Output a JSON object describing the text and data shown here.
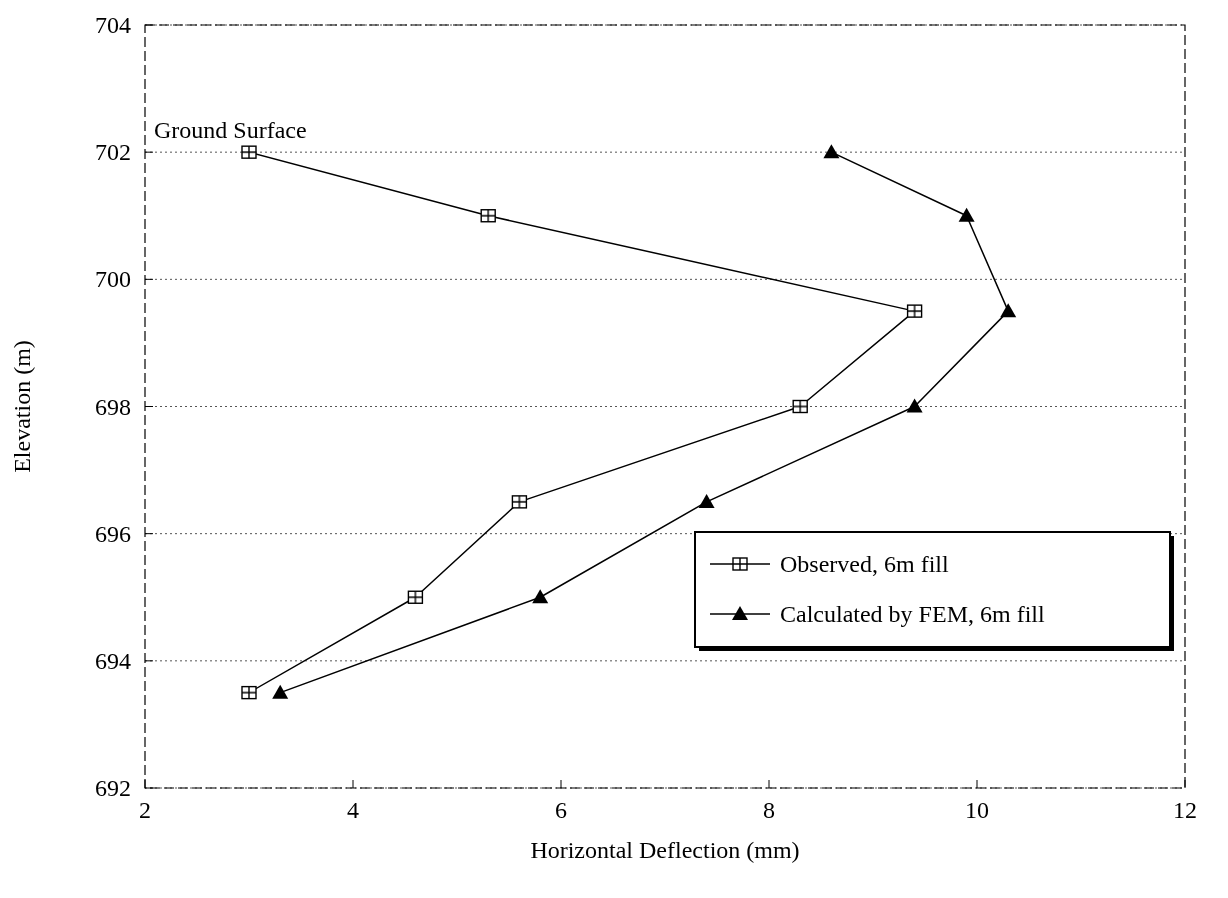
{
  "chart_data": {
    "type": "line",
    "xlabel": "Horizontal Deflection (mm)",
    "ylabel": "Elevation (m)",
    "xlim": [
      2,
      12
    ],
    "xticks": [
      2,
      4,
      6,
      8,
      10,
      12
    ],
    "ylim": [
      692,
      704
    ],
    "yticks": [
      692,
      694,
      696,
      698,
      700,
      702,
      704
    ],
    "grid": "y",
    "legend": "bottom right",
    "annotations": [
      {
        "text": "Ground Surface",
        "x": 3,
        "y": 702
      }
    ],
    "series": [
      {
        "name": "Observed, 6m fill",
        "color": "#000000",
        "marker": "square",
        "x": [
          3.0,
          5.3,
          9.4,
          8.3,
          5.6,
          4.6,
          3.0
        ],
        "values": [
          702,
          701,
          699.5,
          698,
          696.5,
          695,
          693.5
        ]
      },
      {
        "name": "Calculated by FEM, 6m fill",
        "color": "#000000",
        "marker": "triangle",
        "x": [
          8.6,
          9.9,
          10.3,
          9.4,
          7.4,
          5.8,
          3.3
        ],
        "values": [
          702,
          701,
          699.5,
          698,
          696.5,
          695,
          693.5
        ]
      }
    ]
  }
}
